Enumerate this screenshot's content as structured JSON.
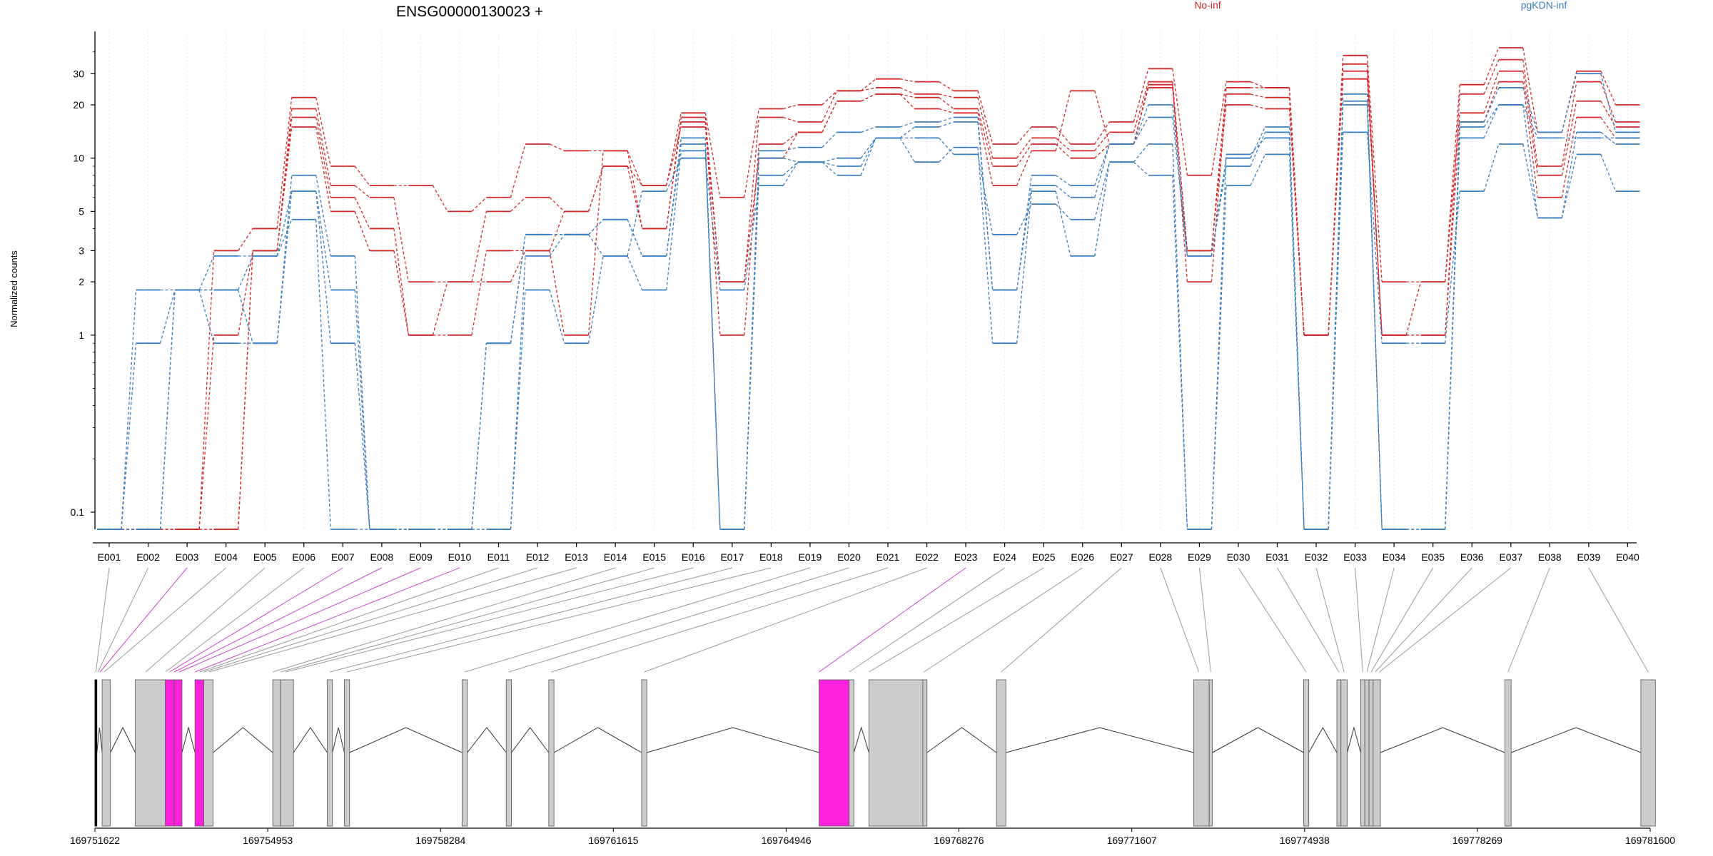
{
  "chart_data": {
    "type": "line",
    "title": "ENSG00000130023 +",
    "ylabel": "Normalized counts",
    "yscale": "log",
    "ylim": [
      0.08,
      52
    ],
    "yticks": [
      0.1,
      1,
      2,
      3,
      5,
      10,
      20,
      30
    ],
    "yticklabels": [
      "0.1",
      "1",
      "2",
      "3",
      "5",
      "10",
      "20",
      "30"
    ],
    "legend": [
      {
        "label": "No-inf",
        "color": "#d62728",
        "placement": "top"
      },
      {
        "label": "pgKDN-inf",
        "color": "#3a7ebf",
        "placement": "top-right"
      }
    ],
    "categories": [
      "E001",
      "E002",
      "E003",
      "E004",
      "E005",
      "E006",
      "E007",
      "E008",
      "E009",
      "E010",
      "E011",
      "E012",
      "E013",
      "E014",
      "E015",
      "E016",
      "E017",
      "E018",
      "E019",
      "E020",
      "E021",
      "E022",
      "E023",
      "E024",
      "E025",
      "E026",
      "E027",
      "E028",
      "E029",
      "E030",
      "E031",
      "E032",
      "E033",
      "E034",
      "E035",
      "E036",
      "E037",
      "E038",
      "E039",
      "E040"
    ],
    "series": [
      {
        "group": "No-inf",
        "color": "#d62728",
        "values": [
          0.08,
          0.08,
          0.08,
          3,
          4,
          22,
          9,
          7,
          7,
          5,
          6,
          12,
          11,
          11,
          7,
          18,
          6,
          19,
          20,
          24,
          28,
          27,
          24,
          12,
          15,
          12,
          16,
          32,
          8,
          27,
          25,
          1,
          38,
          2,
          2,
          26,
          42,
          14,
          31,
          20
        ]
      },
      {
        "group": "No-inf",
        "color": "#d62728",
        "values": [
          0.08,
          0.08,
          0.08,
          1,
          3,
          19,
          7,
          6,
          2,
          2,
          5,
          6,
          5,
          9,
          4,
          17,
          2,
          17,
          16,
          24,
          25,
          23,
          22,
          10,
          13,
          11,
          14,
          27,
          3,
          25,
          25,
          1,
          34,
          1,
          1,
          23,
          36,
          9,
          27,
          16
        ]
      },
      {
        "group": "No-inf",
        "color": "#d62728",
        "values": [
          0.08,
          0.08,
          0.08,
          0.08,
          3,
          17,
          6,
          4,
          1,
          1,
          3,
          3,
          1,
          11,
          4,
          16,
          1,
          12,
          14,
          21,
          23,
          22,
          19,
          9,
          12,
          10,
          12,
          26,
          2,
          23,
          22,
          1,
          31,
          1,
          2,
          18,
          31,
          8,
          21,
          15
        ]
      },
      {
        "group": "No-inf",
        "color": "#d62728",
        "values": [
          0.08,
          0.08,
          0.08,
          0.08,
          3,
          15,
          5,
          3,
          1,
          2,
          2,
          3,
          5,
          9,
          7,
          15,
          2,
          10,
          14,
          21,
          23,
          19,
          18,
          7,
          11,
          24,
          12,
          25,
          3,
          20,
          19,
          1,
          28,
          1,
          1,
          16,
          27,
          6,
          17,
          13
        ]
      },
      {
        "group": "pgKDN-inf",
        "color": "#3a7ebf",
        "values": [
          0.08,
          1.8,
          1.8,
          1.8,
          0.9,
          8,
          2.8,
          0.08,
          0.08,
          0.08,
          0.9,
          3.7,
          3.7,
          4.5,
          2.8,
          13,
          0.08,
          11,
          11.5,
          14,
          15,
          16,
          17,
          1.8,
          8,
          7,
          12,
          20,
          2.8,
          10,
          15,
          0.08,
          23,
          0.08,
          0.08,
          16,
          25,
          14,
          30,
          14
        ]
      },
      {
        "group": "pgKDN-inf",
        "color": "#3a7ebf",
        "values": [
          0.08,
          0.9,
          1.8,
          0.9,
          0.9,
          6.5,
          1.8,
          0.08,
          0.08,
          0.08,
          0.9,
          3.7,
          3.7,
          4.5,
          2.8,
          12,
          0.08,
          10,
          9.5,
          10,
          13,
          15,
          16,
          1.8,
          7,
          6,
          12,
          17,
          2.8,
          9,
          14,
          0.08,
          21,
          0.08,
          0.08,
          15,
          20,
          13,
          13,
          13
        ]
      },
      {
        "group": "pgKDN-inf",
        "color": "#3a7ebf",
        "values": [
          0.08,
          0.08,
          1.8,
          2.8,
          2.8,
          6.5,
          0.9,
          0.08,
          0.08,
          0.08,
          0.08,
          1.8,
          0.9,
          2.8,
          1.8,
          11,
          0.08,
          8,
          9.5,
          9,
          13,
          13,
          10.5,
          3.7,
          5.5,
          4.5,
          9.5,
          12,
          0.08,
          10.5,
          13,
          0.08,
          20,
          0.08,
          0.08,
          13,
          20,
          4.6,
          14,
          12
        ]
      },
      {
        "group": "pgKDN-inf",
        "color": "#3a7ebf",
        "values": [
          0.08,
          0.08,
          1.8,
          1.8,
          2.8,
          4.5,
          0.08,
          0.08,
          0.08,
          0.08,
          0.08,
          2.8,
          3.7,
          2.8,
          6.5,
          10,
          1.8,
          7,
          9.5,
          8,
          13,
          9.5,
          11.5,
          0.9,
          6.5,
          2.8,
          9.5,
          8,
          0.08,
          7,
          10.5,
          0.08,
          14,
          0.9,
          0.9,
          6.5,
          12,
          4.6,
          10.5,
          6.5
        ]
      }
    ],
    "gene_model": {
      "coord_range": [
        169751622,
        169781600
      ],
      "coord_labels": [
        "169751622",
        "169754953",
        "169758284",
        "169761615",
        "169764946",
        "169768276",
        "169771607",
        "169774938",
        "169778269",
        "169781600"
      ],
      "exons": [
        {
          "start": 169751622,
          "end": 169751660,
          "color": "#000000"
        },
        {
          "start": 169751760,
          "end": 169751920,
          "color": "#cccccc"
        },
        {
          "start": 169752400,
          "end": 169752980,
          "color": "#cccccc"
        },
        {
          "start": 169752980,
          "end": 169753150,
          "color": "#ff22dd"
        },
        {
          "start": 169753150,
          "end": 169753300,
          "color": "#ff22dd"
        },
        {
          "start": 169753550,
          "end": 169753720,
          "color": "#ff22dd"
        },
        {
          "start": 169753720,
          "end": 169753900,
          "color": "#cccccc"
        },
        {
          "start": 169755050,
          "end": 169755200,
          "color": "#cccccc"
        },
        {
          "start": 169755200,
          "end": 169755450,
          "color": "#cccccc"
        },
        {
          "start": 169756100,
          "end": 169756200,
          "color": "#cccccc"
        },
        {
          "start": 169756430,
          "end": 169756530,
          "color": "#cccccc"
        },
        {
          "start": 169758700,
          "end": 169758800,
          "color": "#cccccc"
        },
        {
          "start": 169759550,
          "end": 169759650,
          "color": "#cccccc"
        },
        {
          "start": 169760370,
          "end": 169760470,
          "color": "#cccccc"
        },
        {
          "start": 169762160,
          "end": 169762260,
          "color": "#cccccc"
        },
        {
          "start": 169765580,
          "end": 169766160,
          "color": "#ff22dd"
        },
        {
          "start": 169766160,
          "end": 169766250,
          "color": "#cccccc"
        },
        {
          "start": 169766540,
          "end": 169767580,
          "color": "#cccccc"
        },
        {
          "start": 169767580,
          "end": 169767660,
          "color": "#cccccc"
        },
        {
          "start": 169769000,
          "end": 169769180,
          "color": "#cccccc"
        },
        {
          "start": 169772800,
          "end": 169773100,
          "color": "#cccccc"
        },
        {
          "start": 169773100,
          "end": 169773160,
          "color": "#cccccc"
        },
        {
          "start": 169774920,
          "end": 169775020,
          "color": "#cccccc"
        },
        {
          "start": 169775560,
          "end": 169775640,
          "color": "#cccccc"
        },
        {
          "start": 169775640,
          "end": 169775760,
          "color": "#cccccc"
        },
        {
          "start": 169776020,
          "end": 169776100,
          "color": "#cccccc"
        },
        {
          "start": 169776100,
          "end": 169776180,
          "color": "#cccccc"
        },
        {
          "start": 169776180,
          "end": 169776260,
          "color": "#cccccc"
        },
        {
          "start": 169776260,
          "end": 169776400,
          "color": "#cccccc"
        },
        {
          "start": 169778800,
          "end": 169778920,
          "color": "#cccccc"
        },
        {
          "start": 169781420,
          "end": 169781700,
          "color": "#cccccc"
        }
      ],
      "links": [
        {
          "exon_part": "E001",
          "genomic": 169751640,
          "color": "#9a9a9a"
        },
        {
          "exon_part": "E002",
          "genomic": 169751680,
          "color": "#9a9a9a"
        },
        {
          "exon_part": "E003",
          "genomic": 169751720,
          "color": "#cc44cc"
        },
        {
          "exon_part": "E004",
          "genomic": 169751800,
          "color": "#9a9a9a"
        },
        {
          "exon_part": "E005",
          "genomic": 169752600,
          "color": "#9a9a9a"
        },
        {
          "exon_part": "E006",
          "genomic": 169752980,
          "color": "#9a9a9a"
        },
        {
          "exon_part": "E007",
          "genomic": 169753060,
          "color": "#cc44cc"
        },
        {
          "exon_part": "E008",
          "genomic": 169753150,
          "color": "#cc44cc"
        },
        {
          "exon_part": "E009",
          "genomic": 169753250,
          "color": "#cc44cc"
        },
        {
          "exon_part": "E010",
          "genomic": 169753550,
          "color": "#cc44cc"
        },
        {
          "exon_part": "E011",
          "genomic": 169753640,
          "color": "#9a9a9a"
        },
        {
          "exon_part": "E012",
          "genomic": 169753720,
          "color": "#9a9a9a"
        },
        {
          "exon_part": "E013",
          "genomic": 169753820,
          "color": "#9a9a9a"
        },
        {
          "exon_part": "E014",
          "genomic": 169755050,
          "color": "#9a9a9a"
        },
        {
          "exon_part": "E015",
          "genomic": 169755200,
          "color": "#9a9a9a"
        },
        {
          "exon_part": "E016",
          "genomic": 169755300,
          "color": "#9a9a9a"
        },
        {
          "exon_part": "E017",
          "genomic": 169756150,
          "color": "#9a9a9a"
        },
        {
          "exon_part": "E018",
          "genomic": 169756480,
          "color": "#9a9a9a"
        },
        {
          "exon_part": "E019",
          "genomic": 169758750,
          "color": "#9a9a9a"
        },
        {
          "exon_part": "E020",
          "genomic": 169759600,
          "color": "#9a9a9a"
        },
        {
          "exon_part": "E021",
          "genomic": 169760420,
          "color": "#9a9a9a"
        },
        {
          "exon_part": "E022",
          "genomic": 169762210,
          "color": "#9a9a9a"
        },
        {
          "exon_part": "E023",
          "genomic": 169765580,
          "color": "#cc44cc"
        },
        {
          "exon_part": "E024",
          "genomic": 169766160,
          "color": "#9a9a9a"
        },
        {
          "exon_part": "E025",
          "genomic": 169766540,
          "color": "#9a9a9a"
        },
        {
          "exon_part": "E026",
          "genomic": 169767600,
          "color": "#9a9a9a"
        },
        {
          "exon_part": "E027",
          "genomic": 169769090,
          "color": "#9a9a9a"
        },
        {
          "exon_part": "E028",
          "genomic": 169772900,
          "color": "#9a9a9a"
        },
        {
          "exon_part": "E029",
          "genomic": 169773130,
          "color": "#9a9a9a"
        },
        {
          "exon_part": "E030",
          "genomic": 169774970,
          "color": "#9a9a9a"
        },
        {
          "exon_part": "E031",
          "genomic": 169775600,
          "color": "#9a9a9a"
        },
        {
          "exon_part": "E032",
          "genomic": 169775700,
          "color": "#9a9a9a"
        },
        {
          "exon_part": "E033",
          "genomic": 169776060,
          "color": "#9a9a9a"
        },
        {
          "exon_part": "E034",
          "genomic": 169776140,
          "color": "#9a9a9a"
        },
        {
          "exon_part": "E035",
          "genomic": 169776220,
          "color": "#9a9a9a"
        },
        {
          "exon_part": "E036",
          "genomic": 169776300,
          "color": "#9a9a9a"
        },
        {
          "exon_part": "E037",
          "genomic": 169776380,
          "color": "#9a9a9a"
        },
        {
          "exon_part": "E038",
          "genomic": 169778860,
          "color": "#9a9a9a"
        },
        {
          "exon_part": "E039",
          "genomic": 169781560,
          "color": "#9a9a9a"
        }
      ]
    }
  }
}
